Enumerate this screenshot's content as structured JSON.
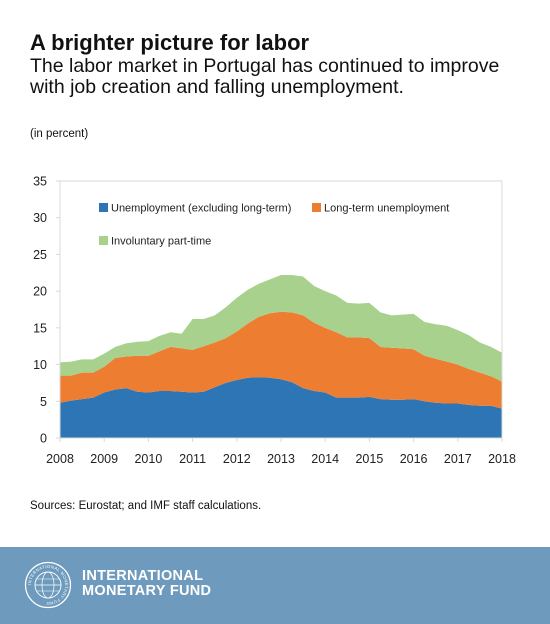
{
  "header": {
    "title": "A brighter picture for labor",
    "subtitle": "The labor market in Portugal has continued to improve with job creation and falling unemployment.",
    "unit": "(in percent)"
  },
  "source": "Sources: Eurostat; and IMF staff calculations.",
  "footer": {
    "org_line1": "INTERNATIONAL",
    "org_line2": "MONETARY FUND",
    "seal_text": "INTERNATIONAL MONETARY FUND",
    "background": "#6e9bbd"
  },
  "chart_data": {
    "type": "area",
    "stacked": true,
    "x": [
      2008.0,
      2008.25,
      2008.5,
      2008.75,
      2009.0,
      2009.25,
      2009.5,
      2009.75,
      2010.0,
      2010.25,
      2010.5,
      2010.75,
      2011.0,
      2011.25,
      2011.5,
      2011.75,
      2012.0,
      2012.25,
      2012.5,
      2012.75,
      2013.0,
      2013.25,
      2013.5,
      2013.75,
      2014.0,
      2014.25,
      2014.5,
      2014.75,
      2015.0,
      2015.25,
      2015.5,
      2015.75,
      2016.0,
      2016.25,
      2016.5,
      2016.75,
      2017.0,
      2017.25,
      2017.5,
      2017.75,
      2018.0
    ],
    "series": [
      {
        "name": "Unemployment (excluding long-term)",
        "color": "#2e75b6",
        "values": [
          4.8,
          5.1,
          5.3,
          5.5,
          6.2,
          6.6,
          6.8,
          6.3,
          6.2,
          6.4,
          6.4,
          6.3,
          6.2,
          6.3,
          6.9,
          7.5,
          7.9,
          8.2,
          8.3,
          8.2,
          8.0,
          7.6,
          6.8,
          6.4,
          6.2,
          5.5,
          5.5,
          5.5,
          5.6,
          5.3,
          5.2,
          5.2,
          5.3,
          5.0,
          4.8,
          4.7,
          4.7,
          4.5,
          4.4,
          4.4,
          4.0
        ]
      },
      {
        "name": "Long-term unemployment",
        "color": "#ed7d31",
        "values": [
          3.7,
          3.4,
          3.6,
          3.4,
          3.5,
          4.3,
          4.3,
          4.9,
          5.0,
          5.4,
          6.0,
          5.9,
          5.8,
          6.2,
          6.1,
          6.1,
          6.6,
          7.4,
          8.2,
          8.8,
          9.2,
          9.5,
          9.9,
          9.3,
          8.8,
          8.9,
          8.2,
          8.2,
          8.0,
          7.1,
          7.1,
          7.0,
          6.8,
          6.2,
          6.0,
          5.7,
          5.3,
          4.9,
          4.5,
          4.0,
          3.7
        ]
      },
      {
        "name": "Involuntary part-time",
        "color": "#a9d18e",
        "values": [
          1.8,
          1.9,
          1.8,
          1.8,
          1.8,
          1.5,
          1.8,
          1.9,
          2.0,
          2.1,
          2.0,
          2.0,
          4.2,
          3.7,
          3.7,
          4.2,
          4.6,
          4.6,
          4.5,
          4.6,
          5.0,
          5.1,
          5.3,
          5.0,
          5.0,
          5.0,
          4.7,
          4.6,
          4.8,
          4.7,
          4.4,
          4.6,
          4.8,
          4.6,
          4.7,
          4.9,
          4.7,
          4.6,
          4.1,
          4.0,
          3.9
        ]
      }
    ],
    "xticks": [
      2008,
      2009,
      2010,
      2011,
      2012,
      2013,
      2014,
      2015,
      2016,
      2017,
      2018
    ],
    "yticks": [
      0,
      5,
      10,
      15,
      20,
      25,
      30,
      35
    ],
    "xlim": [
      2008,
      2018
    ],
    "ylim": [
      0,
      35
    ],
    "grid": false,
    "legend": "top-left inside plot",
    "frame_color": "#d9d9d9"
  }
}
